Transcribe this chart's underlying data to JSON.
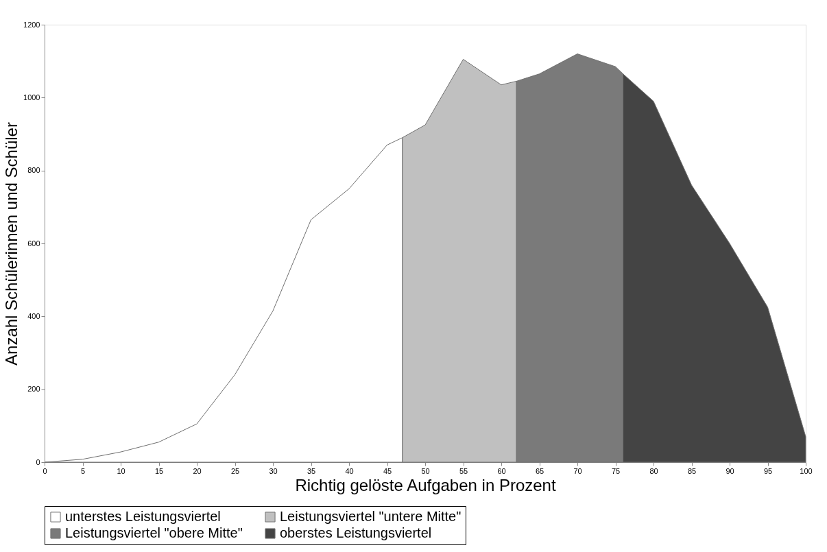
{
  "chart_data": {
    "type": "area",
    "xlabel": "Richtig gelöste Aufgaben in Prozent",
    "ylabel": "Anzahl Schülerinnen und Schüler",
    "series": [
      {
        "name": "unterstes Leistungsviertel",
        "color": "#ffffff",
        "x": [
          0,
          5,
          10,
          15,
          20,
          25,
          30,
          35,
          40,
          45,
          47
        ],
        "values": [
          0,
          8,
          28,
          55,
          105,
          240,
          415,
          665,
          750,
          870,
          890
        ]
      },
      {
        "name": "Leistungsviertel \"untere Mitte\"",
        "color": "#c0c0c0",
        "x": [
          47,
          50,
          55,
          60,
          62
        ],
        "values": [
          890,
          925,
          1105,
          1035,
          1045
        ]
      },
      {
        "name": "Leistungsviertel \"obere Mitte\"",
        "color": "#7a7a7a",
        "x": [
          62,
          65,
          70,
          75,
          76
        ],
        "values": [
          1045,
          1065,
          1120,
          1085,
          1065
        ]
      },
      {
        "name": "oberstes Leistungsviertel",
        "color": "#444444",
        "x": [
          76,
          80,
          85,
          90,
          95,
          100
        ],
        "values": [
          1065,
          990,
          760,
          600,
          425,
          70
        ]
      }
    ],
    "xlim": [
      0,
      100
    ],
    "xticks": [
      0,
      5,
      10,
      15,
      20,
      25,
      30,
      35,
      40,
      45,
      50,
      55,
      60,
      65,
      70,
      75,
      80,
      85,
      90,
      95,
      100
    ],
    "ylim": [
      0,
      1200
    ],
    "yticks": [
      0,
      200,
      400,
      600,
      800,
      1000,
      1200
    ],
    "grid": false,
    "legend": "bottom"
  }
}
